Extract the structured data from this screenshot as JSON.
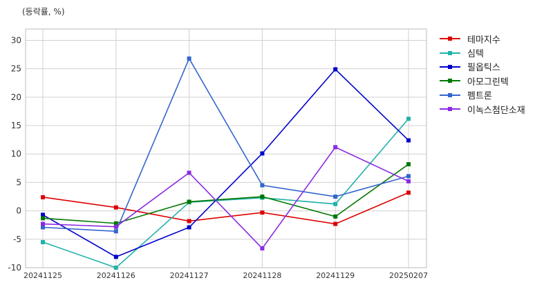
{
  "chart_data": {
    "type": "line",
    "ylabel": "(등락률, %)",
    "categories": [
      "20241125",
      "20241126",
      "20241127",
      "20241128",
      "20241129",
      "20250207"
    ],
    "ylim": [
      -10,
      32
    ],
    "yticks": [
      -10,
      -5,
      0,
      5,
      10,
      15,
      20,
      25,
      30
    ],
    "grid": true,
    "legend_position": "right",
    "series": [
      {
        "name": "테마지수",
        "color": "#dd0000",
        "values": [
          2.4,
          0.6,
          -1.8,
          -0.3,
          -2.3,
          3.2
        ]
      },
      {
        "name": "심텍",
        "color": "#20b2aa",
        "values": [
          -5.5,
          -10.0,
          1.5,
          2.3,
          1.2,
          16.2
        ]
      },
      {
        "name": "필옵틱스",
        "color": "#0000cc",
        "values": [
          -0.7,
          -8.1,
          -2.9,
          10.1,
          24.9,
          12.4
        ]
      },
      {
        "name": "아모그린텍",
        "color": "#007700",
        "values": [
          -1.3,
          -2.2,
          1.6,
          2.5,
          -1.0,
          8.2
        ]
      },
      {
        "name": "펨트론",
        "color": "#3366cc",
        "values": [
          -2.9,
          -3.6,
          26.8,
          4.5,
          2.5,
          6.1
        ]
      },
      {
        "name": "이녹스첨단소재",
        "color": "#8a2be2",
        "values": [
          -2.3,
          -2.8,
          6.7,
          -6.6,
          11.2,
          5.2
        ]
      }
    ]
  }
}
